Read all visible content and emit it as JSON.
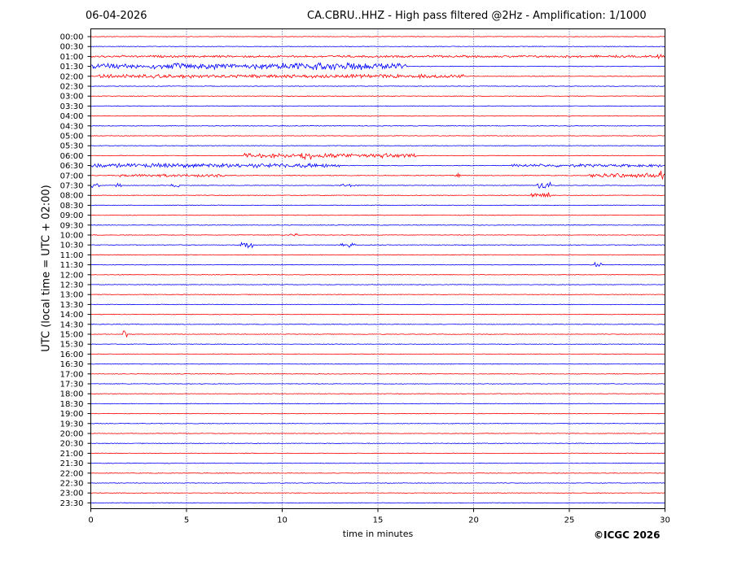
{
  "header": {
    "date": "06-04-2026",
    "title": "CA.CBRU..HHZ - High pass filtered @2Hz - Amplification: 1/1000"
  },
  "footer": {
    "copyright": "©ICGC 2026"
  },
  "chart_data": {
    "type": "line",
    "title": "CA.CBRU..HHZ - High pass filtered @2Hz - Amplification: 1/1000",
    "xlabel": "time in minutes",
    "ylabel": "UTC (local time = UTC + 02:00)",
    "xlim": [
      0,
      30
    ],
    "x_ticks": [
      "0",
      "5",
      "10",
      "15",
      "20",
      "25",
      "30"
    ],
    "grid": "vertical dotted lines at every 5 minutes",
    "colors": {
      "odd_rows": "#ff0000",
      "even_rows": "#0000ff"
    },
    "row_labels": [
      "00:00",
      "00:30",
      "01:00",
      "01:30",
      "02:00",
      "02:30",
      "03:00",
      "03:30",
      "04:00",
      "04:30",
      "05:00",
      "05:30",
      "06:00",
      "06:30",
      "07:00",
      "07:30",
      "08:00",
      "08:30",
      "09:00",
      "09:30",
      "10:00",
      "10:30",
      "11:00",
      "11:30",
      "12:00",
      "12:30",
      "13:00",
      "13:30",
      "14:00",
      "14:30",
      "15:00",
      "15:30",
      "16:00",
      "16:30",
      "17:00",
      "17:30",
      "18:00",
      "18:30",
      "19:00",
      "19:30",
      "20:00",
      "20:30",
      "21:00",
      "21:30",
      "22:00",
      "22:30",
      "23:00",
      "23:30"
    ],
    "row_colors": [
      "red",
      "blue",
      "red",
      "blue",
      "red",
      "blue",
      "red",
      "blue",
      "red",
      "blue",
      "red",
      "blue",
      "red",
      "blue",
      "red",
      "blue",
      "red",
      "blue",
      "red",
      "blue",
      "red",
      "blue",
      "red",
      "blue",
      "red",
      "blue",
      "red",
      "blue",
      "red",
      "blue",
      "red",
      "blue",
      "red",
      "blue",
      "red",
      "blue",
      "red",
      "blue",
      "red",
      "blue",
      "red",
      "blue",
      "red",
      "blue",
      "red",
      "blue",
      "red",
      "blue"
    ],
    "events": [
      {
        "row": "01:00",
        "start_min": 0,
        "end_min": 30,
        "amplitude": 1.5
      },
      {
        "row": "01:00",
        "start_min": 29.6,
        "end_min": 29.8,
        "amplitude": 5
      },
      {
        "row": "01:30",
        "start_min": 0,
        "end_min": 16.5,
        "amplitude": 4
      },
      {
        "row": "01:30",
        "start_min": 10,
        "end_min": 14.5,
        "amplitude": 5
      },
      {
        "row": "02:00",
        "start_min": 0.3,
        "end_min": 19.5,
        "amplitude": 2.5
      },
      {
        "row": "02:00",
        "start_min": 17,
        "end_min": 17.3,
        "amplitude": 4
      },
      {
        "row": "06:00",
        "start_min": 8,
        "end_min": 17,
        "amplitude": 3
      },
      {
        "row": "06:00",
        "start_min": 11,
        "end_min": 11.6,
        "amplitude": 6
      },
      {
        "row": "06:30",
        "start_min": 0,
        "end_min": 13,
        "amplitude": 3
      },
      {
        "row": "06:30",
        "start_min": 22,
        "end_min": 30,
        "amplitude": 2
      },
      {
        "row": "07:00",
        "start_min": 1.5,
        "end_min": 7,
        "amplitude": 2
      },
      {
        "row": "07:00",
        "start_min": 19,
        "end_min": 19.3,
        "amplitude": 4
      },
      {
        "row": "07:00",
        "start_min": 26,
        "end_min": 30,
        "amplitude": 3
      },
      {
        "row": "07:00",
        "start_min": 29.7,
        "end_min": 30,
        "amplitude": 7
      },
      {
        "row": "07:30",
        "start_min": 0,
        "end_min": 0.5,
        "amplitude": 3
      },
      {
        "row": "07:30",
        "start_min": 1.3,
        "end_min": 1.6,
        "amplitude": 4
      },
      {
        "row": "07:30",
        "start_min": 4.2,
        "end_min": 4.6,
        "amplitude": 3
      },
      {
        "row": "07:30",
        "start_min": 13,
        "end_min": 14,
        "amplitude": 2
      },
      {
        "row": "07:30",
        "start_min": 23.3,
        "end_min": 24,
        "amplitude": 5
      },
      {
        "row": "08:00",
        "start_min": 23,
        "end_min": 24,
        "amplitude": 5
      },
      {
        "row": "10:00",
        "start_min": 10.2,
        "end_min": 10.8,
        "amplitude": 2
      },
      {
        "row": "10:30",
        "start_min": 7.8,
        "end_min": 8.5,
        "amplitude": 4
      },
      {
        "row": "10:30",
        "start_min": 13,
        "end_min": 13.8,
        "amplitude": 3
      },
      {
        "row": "11:30",
        "start_min": 26.3,
        "end_min": 26.7,
        "amplitude": 3
      },
      {
        "row": "15:00",
        "start_min": 1.6,
        "end_min": 1.9,
        "amplitude": 6
      }
    ]
  }
}
